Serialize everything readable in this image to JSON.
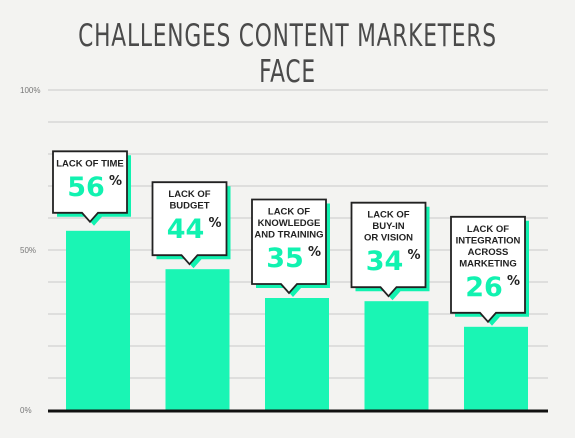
{
  "title": "CHALLENGES CONTENT MARKETERS FACE",
  "colors": {
    "bar": "#1af5b4",
    "accent": "#11f2b0",
    "grid": "#c9c9c9",
    "axis": "#111111",
    "callout_border": "#222222",
    "callout_bg": "#ffffff"
  },
  "chart_data": {
    "type": "bar",
    "title": "CHALLENGES CONTENT MARKETERS FACE",
    "xlabel": "",
    "ylabel": "",
    "ylim": [
      0,
      100
    ],
    "yticks": [
      "0%",
      "50%",
      "100%"
    ],
    "grid": true,
    "categories": [
      "LACK OF TIME",
      "LACK OF BUDGET",
      "LACK OF KNOWLEDGE AND TRAINING",
      "LACK OF BUY-IN OR VISION",
      "LACK OF INTEGRATION ACROSS MARKETING"
    ],
    "label_lines": [
      [
        "LACK OF TIME"
      ],
      [
        "LACK OF",
        "BUDGET"
      ],
      [
        "LACK OF",
        "KNOWLEDGE",
        "AND TRAINING"
      ],
      [
        "LACK OF",
        "BUY-IN",
        "OR VISION"
      ],
      [
        "LACK OF",
        "INTEGRATION",
        "ACROSS",
        "MARKETING"
      ]
    ],
    "values": [
      56,
      44,
      35,
      34,
      26
    ],
    "value_labels": [
      "56",
      "44",
      "35",
      "34",
      "26"
    ],
    "unit": "%"
  }
}
